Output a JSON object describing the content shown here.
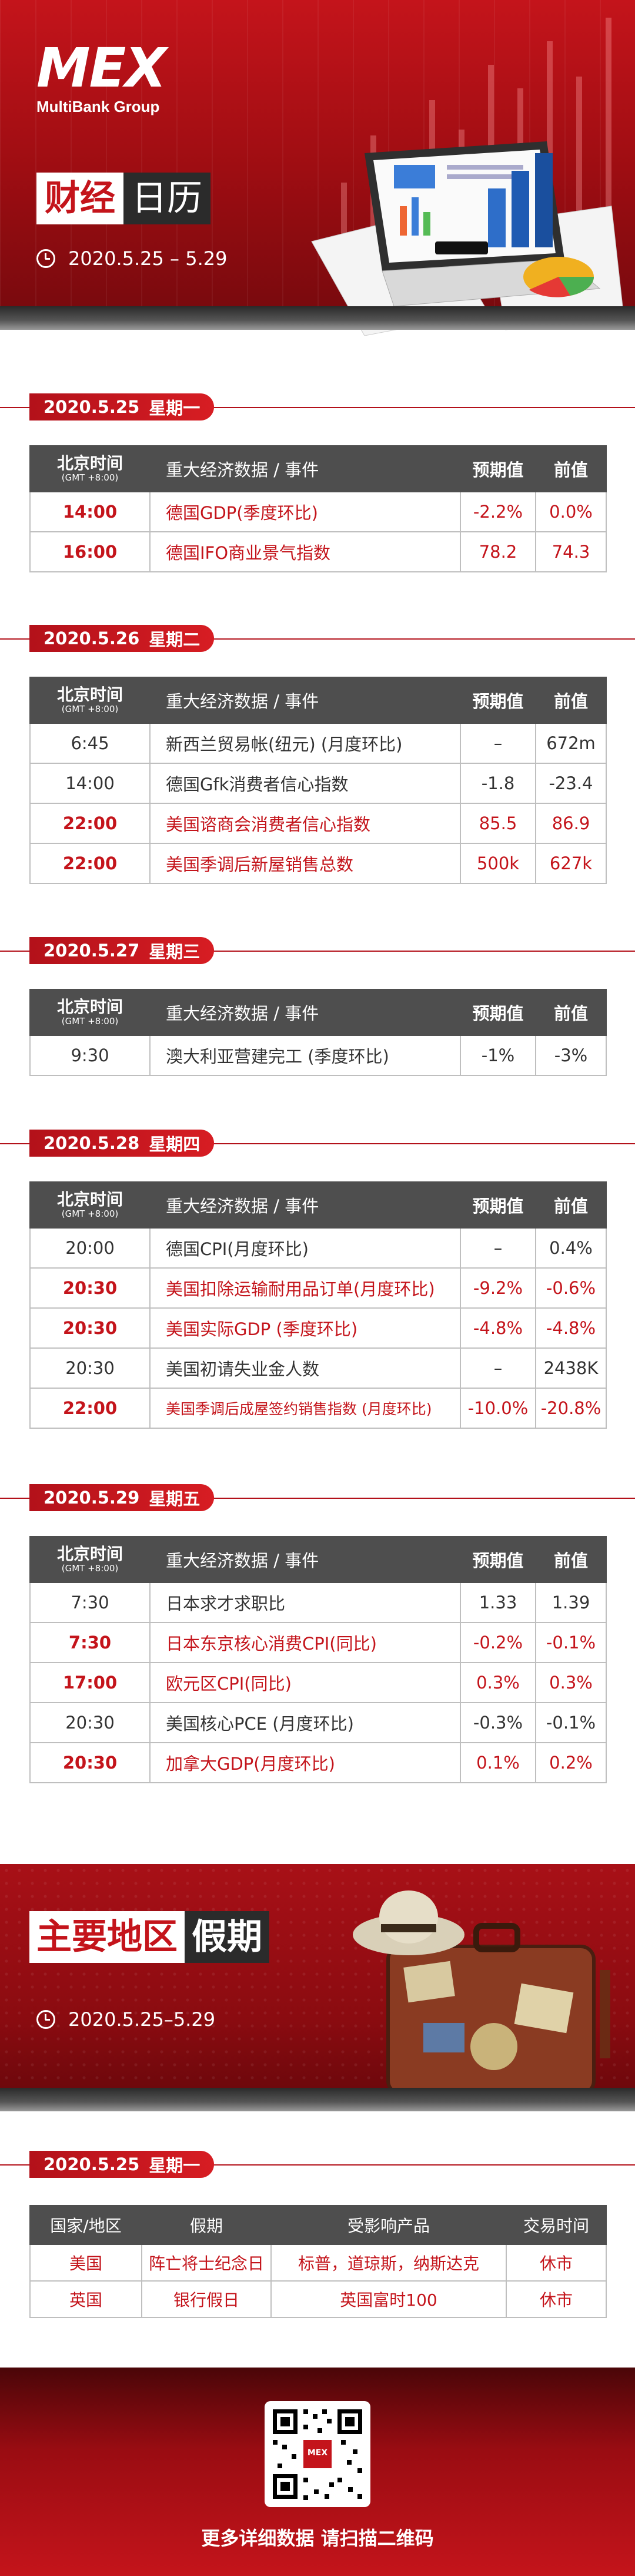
{
  "brand": {
    "logo_text": "MEX",
    "group": "MultiBank Group"
  },
  "header": {
    "title_a": "财经",
    "title_b": "日历",
    "date_range": "2020.5.25 – 5.29"
  },
  "table_headers": {
    "time": "北京时间",
    "time_sub": "(GMT +8:00)",
    "event": "重大经济数据 / 事件",
    "forecast": "预期值",
    "previous": "前值"
  },
  "days": [
    {
      "date": "2020.5.25",
      "weekday": "星期一",
      "rows": [
        {
          "time": "14:00",
          "event": "德国GDP(季度环比)",
          "forecast": "-2.2%",
          "previous": "0.0%",
          "highlight": true
        },
        {
          "time": "16:00",
          "event": "德国IFO商业景气指数",
          "forecast": "78.2",
          "previous": "74.3",
          "highlight": true
        }
      ]
    },
    {
      "date": "2020.5.26",
      "weekday": "星期二",
      "rows": [
        {
          "time": "6:45",
          "event": "新西兰贸易帐(纽元) (月度环比)",
          "forecast": "–",
          "previous": "672m",
          "highlight": false
        },
        {
          "time": "14:00",
          "event": "德国Gfk消费者信心指数",
          "forecast": "-1.8",
          "previous": "-23.4",
          "highlight": false
        },
        {
          "time": "22:00",
          "event": "美国谘商会消费者信心指数",
          "forecast": "85.5",
          "previous": "86.9",
          "highlight": true
        },
        {
          "time": "22:00",
          "event": "美国季调后新屋销售总数",
          "forecast": "500k",
          "previous": "627k",
          "highlight": true
        }
      ]
    },
    {
      "date": "2020.5.27",
      "weekday": "星期三",
      "rows": [
        {
          "time": "9:30",
          "event": "澳大利亚营建完工 (季度环比)",
          "forecast": "-1%",
          "previous": "-3%",
          "highlight": false
        }
      ]
    },
    {
      "date": "2020.5.28",
      "weekday": "星期四",
      "rows": [
        {
          "time": "20:00",
          "event": "德国CPI(月度环比)",
          "forecast": "–",
          "previous": "0.4%",
          "highlight": false
        },
        {
          "time": "20:30",
          "event": "美国扣除运输耐用品订单(月度环比)",
          "forecast": "-9.2%",
          "previous": "-0.6%",
          "highlight": true
        },
        {
          "time": "20:30",
          "event": "美国实际GDP (季度环比)",
          "forecast": "-4.8%",
          "previous": "-4.8%",
          "highlight": true
        },
        {
          "time": "20:30",
          "event": "美国初请失业金人数",
          "forecast": "–",
          "previous": "2438K",
          "highlight": false
        },
        {
          "time": "22:00",
          "event": "美国季调后成屋签约销售指数 (月度环比)",
          "forecast": "-10.0%",
          "previous": "-20.8%",
          "highlight": true
        }
      ]
    },
    {
      "date": "2020.5.29",
      "weekday": "星期五",
      "rows": [
        {
          "time": "7:30",
          "event": "日本求才求职比",
          "forecast": "1.33",
          "previous": "1.39",
          "highlight": false
        },
        {
          "time": "7:30",
          "event": "日本东京核心消费CPI(同比)",
          "forecast": "-0.2%",
          "previous": "-0.1%",
          "highlight": true
        },
        {
          "time": "17:00",
          "event": "欧元区CPI(同比)",
          "forecast": "0.3%",
          "previous": "0.3%",
          "highlight": true
        },
        {
          "time": "20:30",
          "event": "美国核心PCE (月度环比)",
          "forecast": "-0.3%",
          "previous": "-0.1%",
          "highlight": false
        },
        {
          "time": "20:30",
          "event": "加拿大GDP(月度环比)",
          "forecast": "0.1%",
          "previous": "0.2%",
          "highlight": true
        }
      ]
    }
  ],
  "holidays": {
    "title_a": "主要地区",
    "title_b": "假期",
    "date_range": "2020.5.25–5.29",
    "day": {
      "date": "2020.5.25",
      "weekday": "星期一"
    },
    "headers": {
      "region": "国家/地区",
      "holiday": "假期",
      "products": "受影响产品",
      "trading": "交易时间"
    },
    "rows": [
      {
        "region": "美国",
        "holiday": "阵亡将士纪念日",
        "products": "标普，道琼斯，纳斯达克",
        "trading": "休市"
      },
      {
        "region": "英国",
        "holiday": "银行假日",
        "products": "英国富时100",
        "trading": "休市"
      }
    ]
  },
  "footer": {
    "caption": "更多详细数据 请扫描二维码",
    "qr_badge": "MEX"
  },
  "colors": {
    "brand_red": "#c4141b",
    "header_gray": "#4e4e4e",
    "border": "#bfbfbf"
  }
}
